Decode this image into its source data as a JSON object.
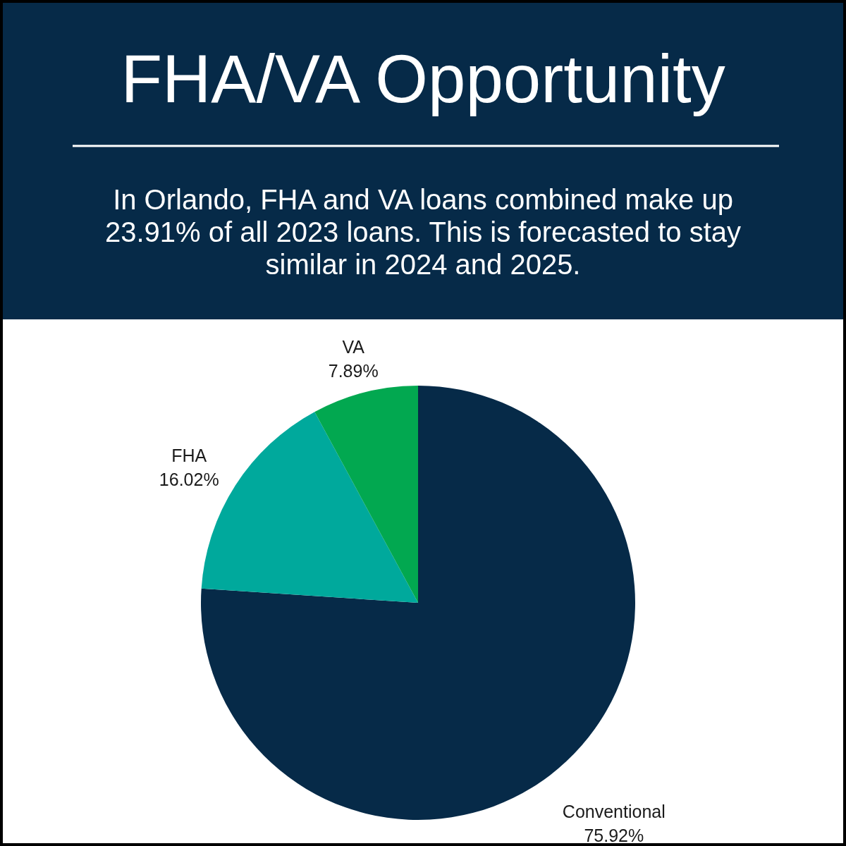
{
  "chart_data": {
    "type": "pie",
    "title": "FHA/VA Opportunity",
    "subtitle": "In Orlando, FHA and VA loans combined make up 23.91% of all 2023 loans. This is forecasted to stay similar in 2024 and 2025.",
    "categories": [
      "Conventional",
      "FHA",
      "VA"
    ],
    "values": [
      75.92,
      16.02,
      7.89
    ],
    "colors": [
      "#062a48",
      "#00a99c",
      "#02a850"
    ],
    "value_labels": [
      "75.92%",
      "16.02%",
      "7.89%"
    ],
    "legend": false
  }
}
